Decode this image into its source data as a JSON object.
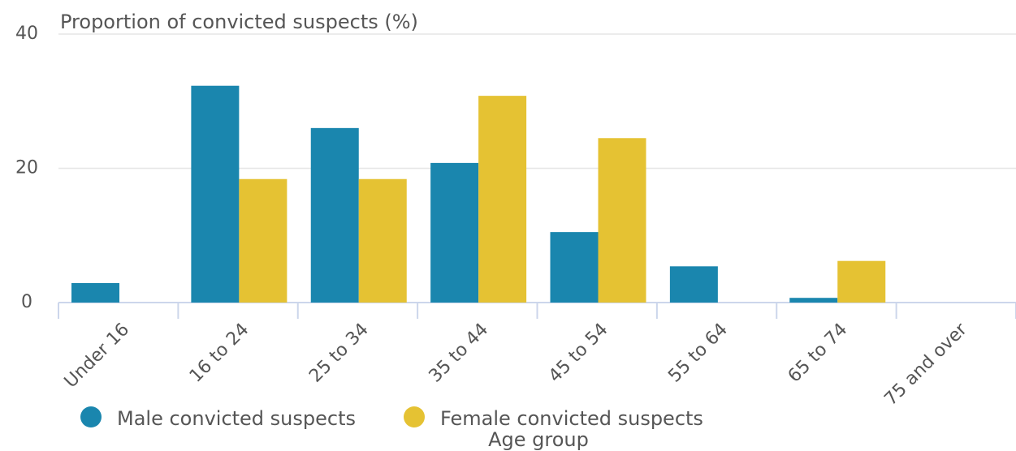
{
  "chart_data": {
    "type": "bar",
    "y_label": "Proportion of convicted suspects (%)",
    "x_label": "Age group",
    "categories": [
      "Under 16",
      "16 to 24",
      "25 to 34",
      "35 to 44",
      "45 to 54",
      "55 to 64",
      "65 to 74",
      "75 and over"
    ],
    "series": [
      {
        "name": "Male convicted suspects",
        "color": "#1a86ae",
        "values": [
          2.9,
          32.3,
          26.0,
          20.8,
          10.5,
          5.4,
          0.7,
          0
        ]
      },
      {
        "name": "Female convicted suspects",
        "color": "#e5c233",
        "values": [
          0,
          18.4,
          18.4,
          30.8,
          24.5,
          0,
          6.2,
          0
        ]
      }
    ],
    "ylim": [
      0,
      40
    ],
    "yticks": [
      0,
      20,
      40
    ],
    "grid": true
  }
}
